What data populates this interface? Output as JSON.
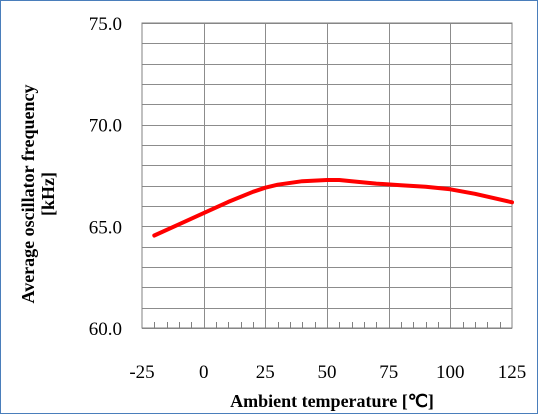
{
  "chart_data": {
    "type": "line",
    "title": "",
    "xlabel": "Ambient temperature [℃]",
    "ylabel_line1": "Average oscillator frequency",
    "ylabel_line2": "[kHz]",
    "xlim": [
      -25,
      125
    ],
    "ylim": [
      60.0,
      75.0
    ],
    "x_ticks": [
      -25,
      0,
      25,
      50,
      75,
      100,
      125
    ],
    "x_tick_labels": [
      "-25",
      "0",
      "25",
      "50",
      "75",
      "100",
      "125"
    ],
    "y_ticks": [
      60,
      65,
      70,
      75
    ],
    "y_tick_labels": [
      "60.0",
      "65.0",
      "70.0",
      "75.0"
    ],
    "grid": true,
    "series": [
      {
        "color": "#ff0000",
        "x": [
          -20,
          -10,
          0,
          10,
          20,
          25,
          30,
          40,
          50,
          55,
          60,
          70,
          80,
          90,
          100,
          110,
          125
        ],
        "y": [
          64.55,
          65.1,
          65.65,
          66.2,
          66.7,
          66.9,
          67.05,
          67.22,
          67.28,
          67.28,
          67.22,
          67.1,
          67.02,
          66.95,
          66.82,
          66.6,
          66.18
        ]
      }
    ]
  }
}
